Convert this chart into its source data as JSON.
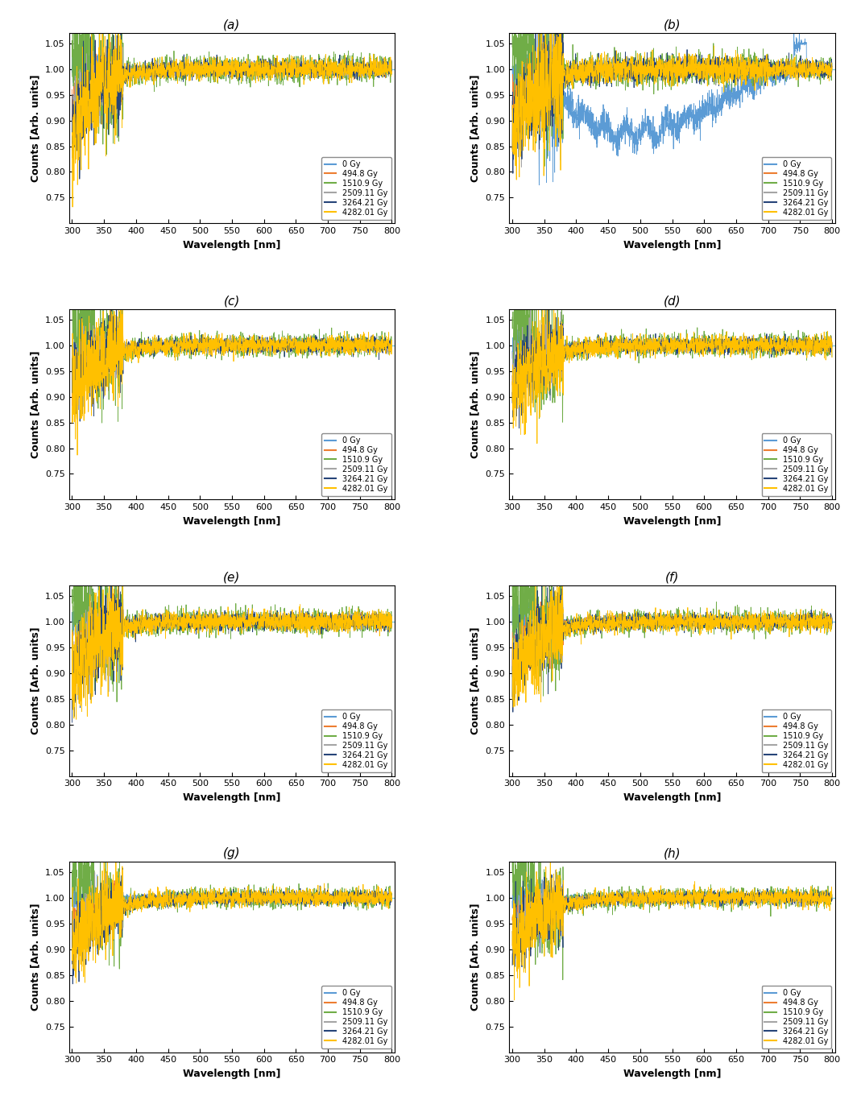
{
  "subplots": [
    "(a)",
    "(b)",
    "(c)",
    "(d)",
    "(e)",
    "(f)",
    "(g)",
    "(h)"
  ],
  "labels": [
    "0 Gy",
    "494.8 Gy",
    "1510.9 Gy",
    "2509.11 Gy",
    "3264.21 Gy",
    "4282.01 Gy"
  ],
  "colors": [
    "#5b9bd5",
    "#ed7d31",
    "#70ad47",
    "#a5a5a5",
    "#264478",
    "#ffc000"
  ],
  "xlim": [
    295,
    805
  ],
  "ylim": [
    0.7,
    1.07
  ],
  "yticks": [
    0.75,
    0.8,
    0.85,
    0.9,
    0.95,
    1.0,
    1.05
  ],
  "xticks": [
    300,
    350,
    400,
    450,
    500,
    550,
    600,
    650,
    700,
    750,
    800
  ],
  "xlabel": "Wavelength [nm]",
  "ylabel": "Counts [Arb. units]",
  "hline_y": 1.0,
  "hline_color": "#7ec8e3"
}
